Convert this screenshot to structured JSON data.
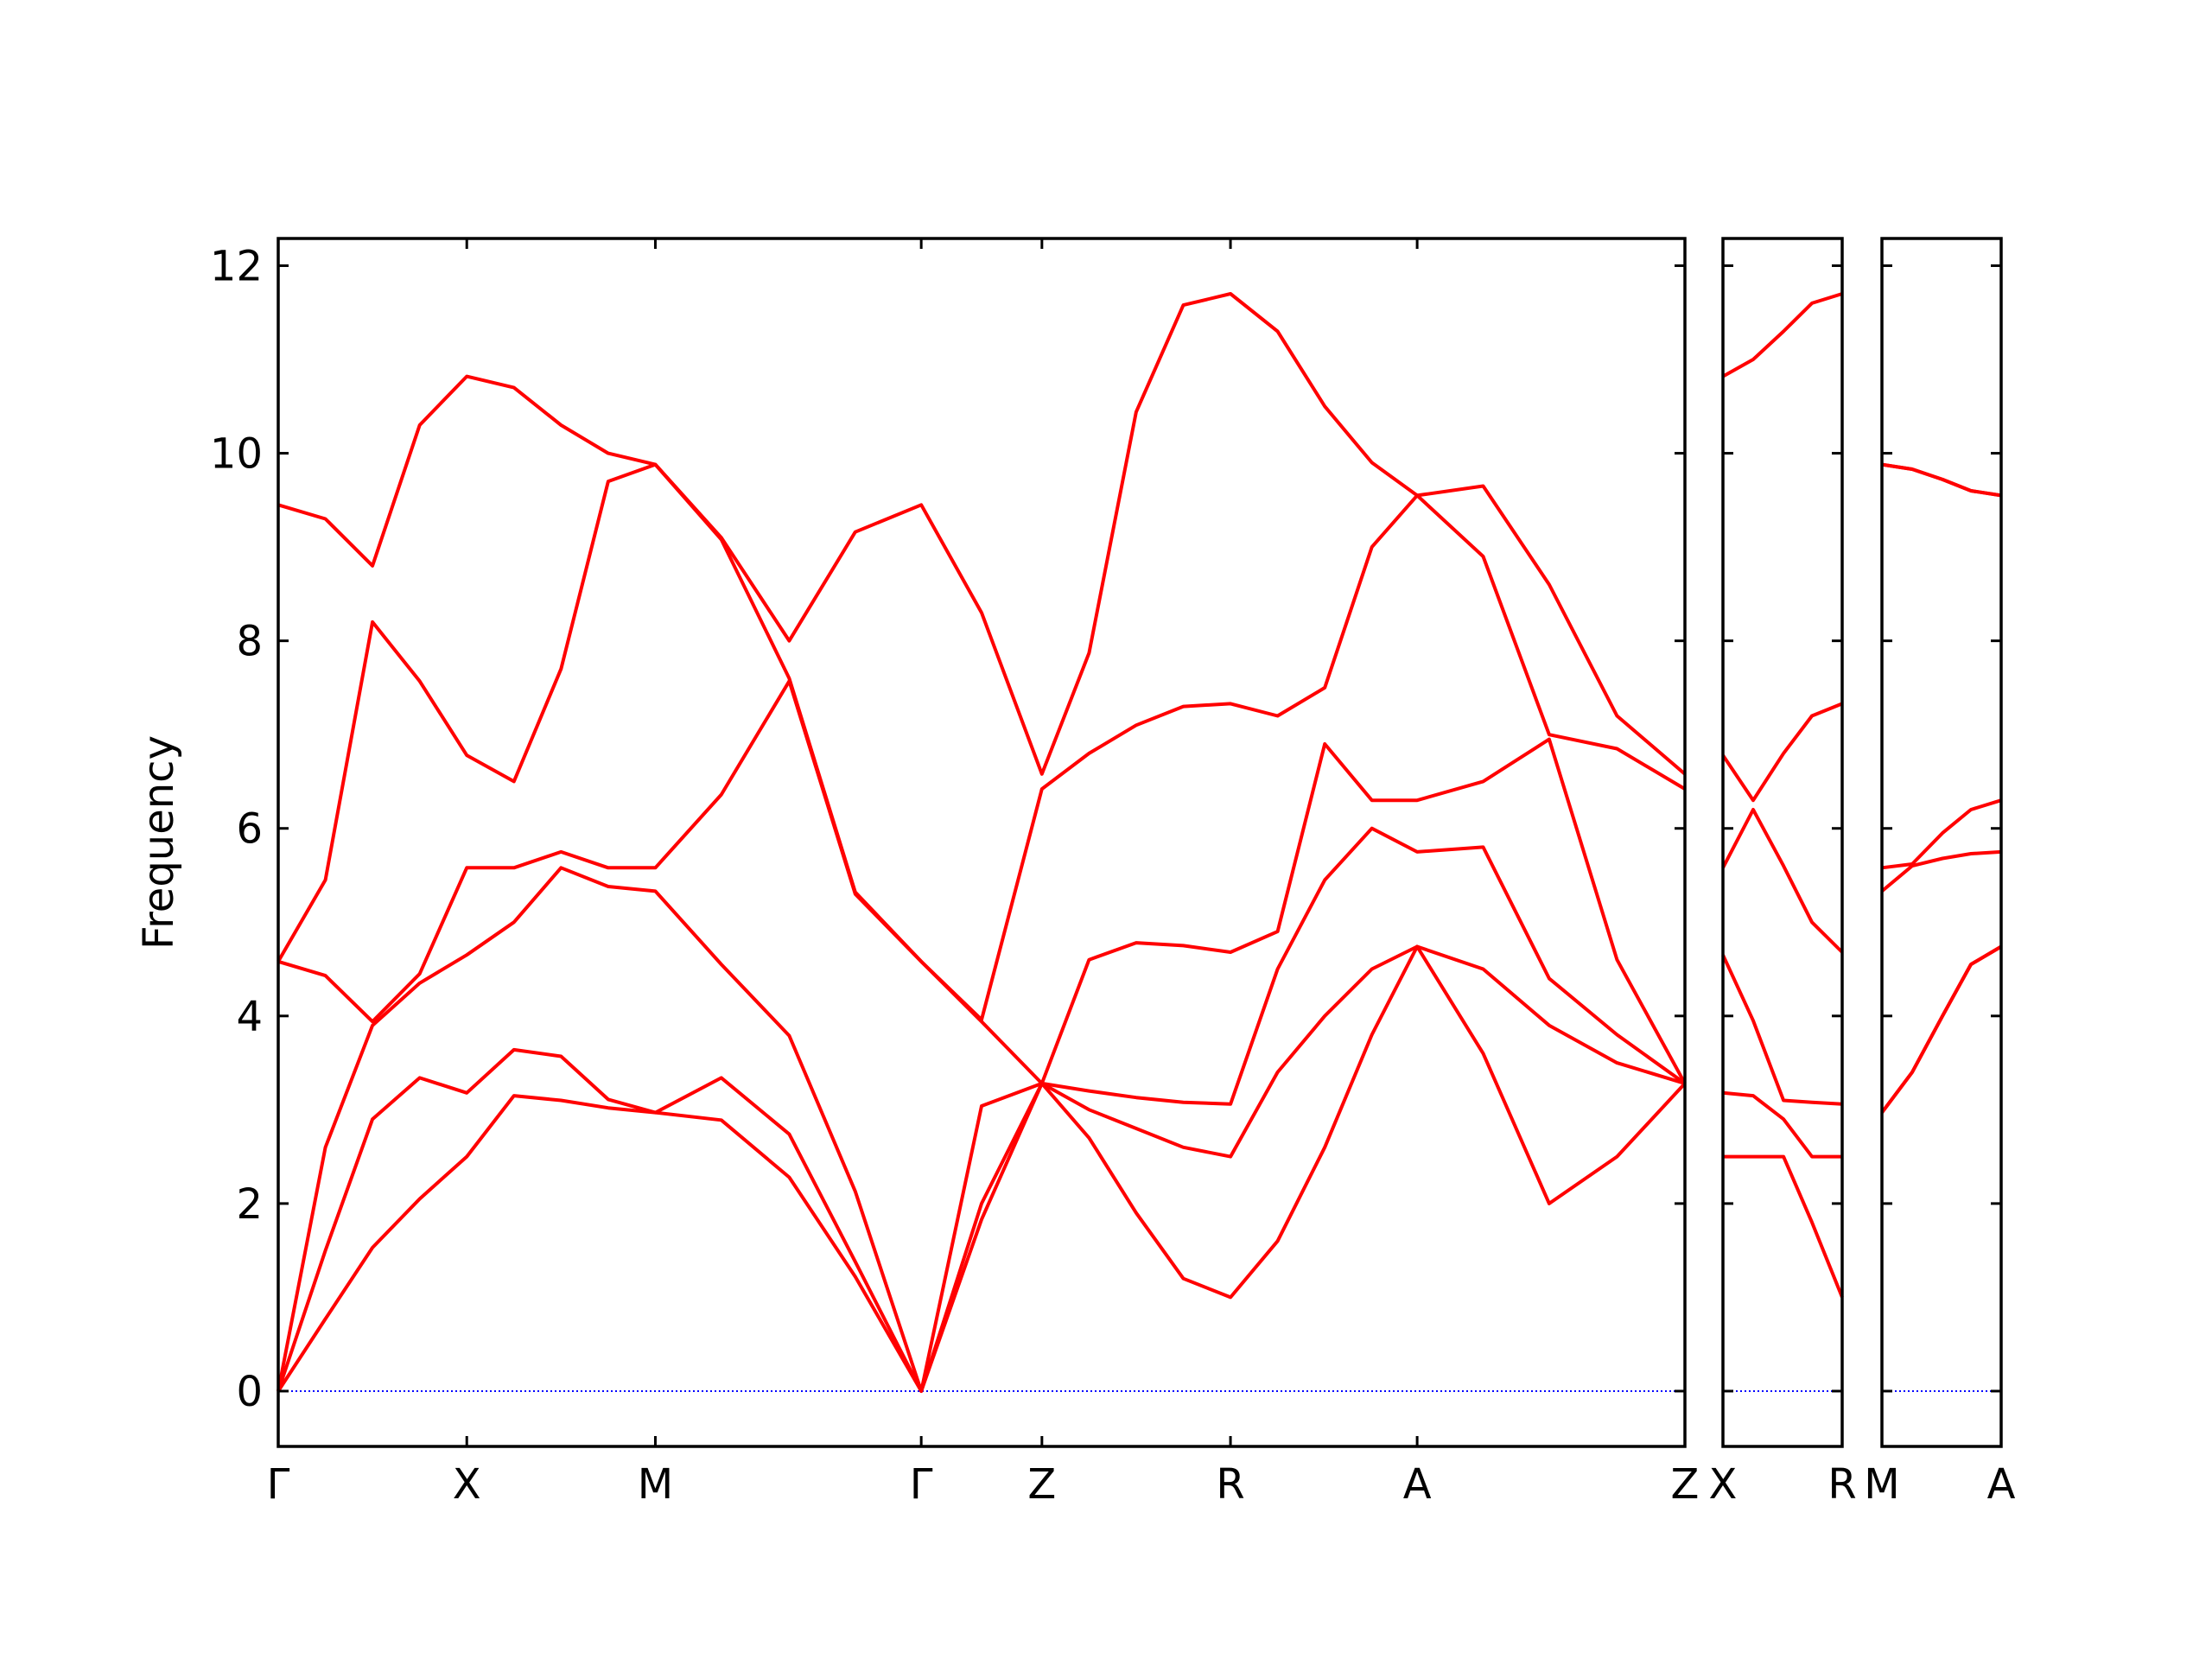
{
  "chart_data": [
    {
      "type": "line",
      "ylabel": "Frequency",
      "color": "#ff0000",
      "hline": 0,
      "hline_color": "#0000ff",
      "ytick_labels": true,
      "xlim": [
        0,
        7.46
      ],
      "ylim": [
        -0.59,
        12.29
      ],
      "xticks": [
        {
          "value": 0,
          "label": "Γ"
        },
        {
          "value": 1,
          "label": "X"
        },
        {
          "value": 2,
          "label": "M"
        },
        {
          "value": 3.41,
          "label": "Γ"
        },
        {
          "value": 4.05,
          "label": "Z"
        },
        {
          "value": 5.05,
          "label": "R"
        },
        {
          "value": 6.04,
          "label": "A"
        },
        {
          "value": 7.46,
          "label": "Z"
        }
      ],
      "yticks": [
        0,
        2,
        4,
        6,
        8,
        10,
        12
      ],
      "x": [
        0,
        0.25,
        0.5,
        0.75,
        1,
        1.25,
        1.5,
        1.75,
        2,
        2.35,
        2.71,
        3.06,
        3.41,
        3.73,
        4.05,
        4.3,
        4.55,
        4.8,
        5.05,
        5.3,
        5.55,
        5.8,
        6.04,
        6.39,
        6.74,
        7.1,
        7.46
      ],
      "series": [
        {
          "values": [
            0,
            0.77,
            1.53,
            2.05,
            2.5,
            3.15,
            3.1,
            3.02,
            2.97,
            2.89,
            2.28,
            1.22,
            0,
            1.83,
            3.28,
            2.7,
            1.9,
            1.2,
            1.0,
            1.6,
            2.6,
            3.8,
            4.74,
            3.6,
            2.0,
            2.5,
            3.28
          ]
        },
        {
          "values": [
            0,
            1.5,
            2.9,
            3.34,
            3.18,
            3.64,
            3.57,
            3.11,
            2.97,
            3.34,
            2.74,
            1.38,
            0,
            2.0,
            3.28,
            3.0,
            2.8,
            2.6,
            2.5,
            3.4,
            4.0,
            4.5,
            4.74,
            4.5,
            3.9,
            3.5,
            3.28
          ]
        },
        {
          "values": [
            0,
            2.6,
            3.9,
            4.35,
            4.65,
            5.0,
            5.58,
            5.38,
            5.33,
            4.55,
            3.79,
            2.13,
            0,
            3.04,
            3.28,
            3.2,
            3.13,
            3.08,
            3.06,
            4.5,
            5.45,
            6.0,
            5.75,
            5.8,
            4.4,
            3.8,
            3.28
          ]
        },
        {
          "values": [
            4.58,
            4.43,
            3.94,
            4.45,
            5.58,
            5.58,
            5.75,
            5.58,
            5.58,
            6.36,
            7.57,
            5.3,
            4.58,
            3.94,
            3.28,
            4.6,
            4.78,
            4.75,
            4.68,
            4.9,
            6.9,
            6.3,
            6.3,
            6.5,
            6.95,
            4.6,
            3.28
          ]
        },
        {
          "values": [
            4.58,
            5.45,
            8.2,
            7.57,
            6.78,
            6.5,
            7.7,
            9.7,
            9.88,
            9.08,
            7.6,
            5.32,
            4.58,
            3.96,
            6.42,
            6.8,
            7.1,
            7.3,
            7.33,
            7.2,
            7.5,
            9.0,
            9.55,
            8.9,
            7.0,
            6.85,
            6.42
          ]
        },
        {
          "values": [
            9.45,
            9.3,
            8.8,
            10.3,
            10.82,
            10.7,
            10.3,
            10.0,
            9.88,
            9.1,
            8.0,
            9.16,
            9.45,
            8.3,
            6.58,
            7.87,
            10.44,
            11.58,
            11.7,
            11.3,
            10.5,
            9.9,
            9.55,
            9.65,
            8.6,
            7.2,
            6.58
          ]
        }
      ]
    },
    {
      "type": "line",
      "color": "#ff0000",
      "hline": 0,
      "hline_color": "#0000ff",
      "ytick_labels": false,
      "xlim": [
        0,
        0.63
      ],
      "ylim": [
        -0.59,
        12.29
      ],
      "xticks": [
        {
          "value": 0,
          "label": "X"
        },
        {
          "value": 0.63,
          "label": "R"
        }
      ],
      "yticks": [
        0,
        2,
        4,
        6,
        8,
        10,
        12
      ],
      "x": [
        0,
        0.16,
        0.32,
        0.47,
        0.63
      ],
      "series": [
        {
          "values": [
            2.5,
            2.5,
            2.5,
            1.8,
            1.0
          ]
        },
        {
          "values": [
            3.18,
            3.15,
            2.9,
            2.5,
            2.5
          ]
        },
        {
          "values": [
            4.65,
            3.95,
            3.1,
            3.08,
            3.06
          ]
        },
        {
          "values": [
            5.58,
            6.2,
            5.6,
            5.0,
            4.68
          ]
        },
        {
          "values": [
            6.78,
            6.3,
            6.8,
            7.2,
            7.33
          ]
        },
        {
          "values": [
            10.82,
            11.0,
            11.3,
            11.6,
            11.7
          ]
        }
      ]
    },
    {
      "type": "line",
      "color": "#ff0000",
      "hline": 0,
      "hline_color": "#0000ff",
      "ytick_labels": false,
      "xlim": [
        0,
        0.63
      ],
      "ylim": [
        -0.59,
        12.29
      ],
      "xticks": [
        {
          "value": 0,
          "label": "M"
        },
        {
          "value": 0.63,
          "label": "A"
        }
      ],
      "yticks": [
        0,
        2,
        4,
        6,
        8,
        10,
        12
      ],
      "x": [
        0,
        0.16,
        0.32,
        0.47,
        0.63
      ],
      "series": [
        {
          "values": [
            2.97,
            3.4,
            4.0,
            4.55,
            4.74
          ]
        },
        {
          "values": [
            2.97,
            3.4,
            4.0,
            4.55,
            4.74
          ]
        },
        {
          "values": [
            5.33,
            5.6,
            5.68,
            5.73,
            5.75
          ]
        },
        {
          "values": [
            5.58,
            5.62,
            5.95,
            6.2,
            6.3
          ]
        },
        {
          "values": [
            9.88,
            9.83,
            9.72,
            9.6,
            9.55
          ]
        },
        {
          "values": [
            9.88,
            9.83,
            9.72,
            9.6,
            9.55
          ]
        }
      ]
    }
  ]
}
